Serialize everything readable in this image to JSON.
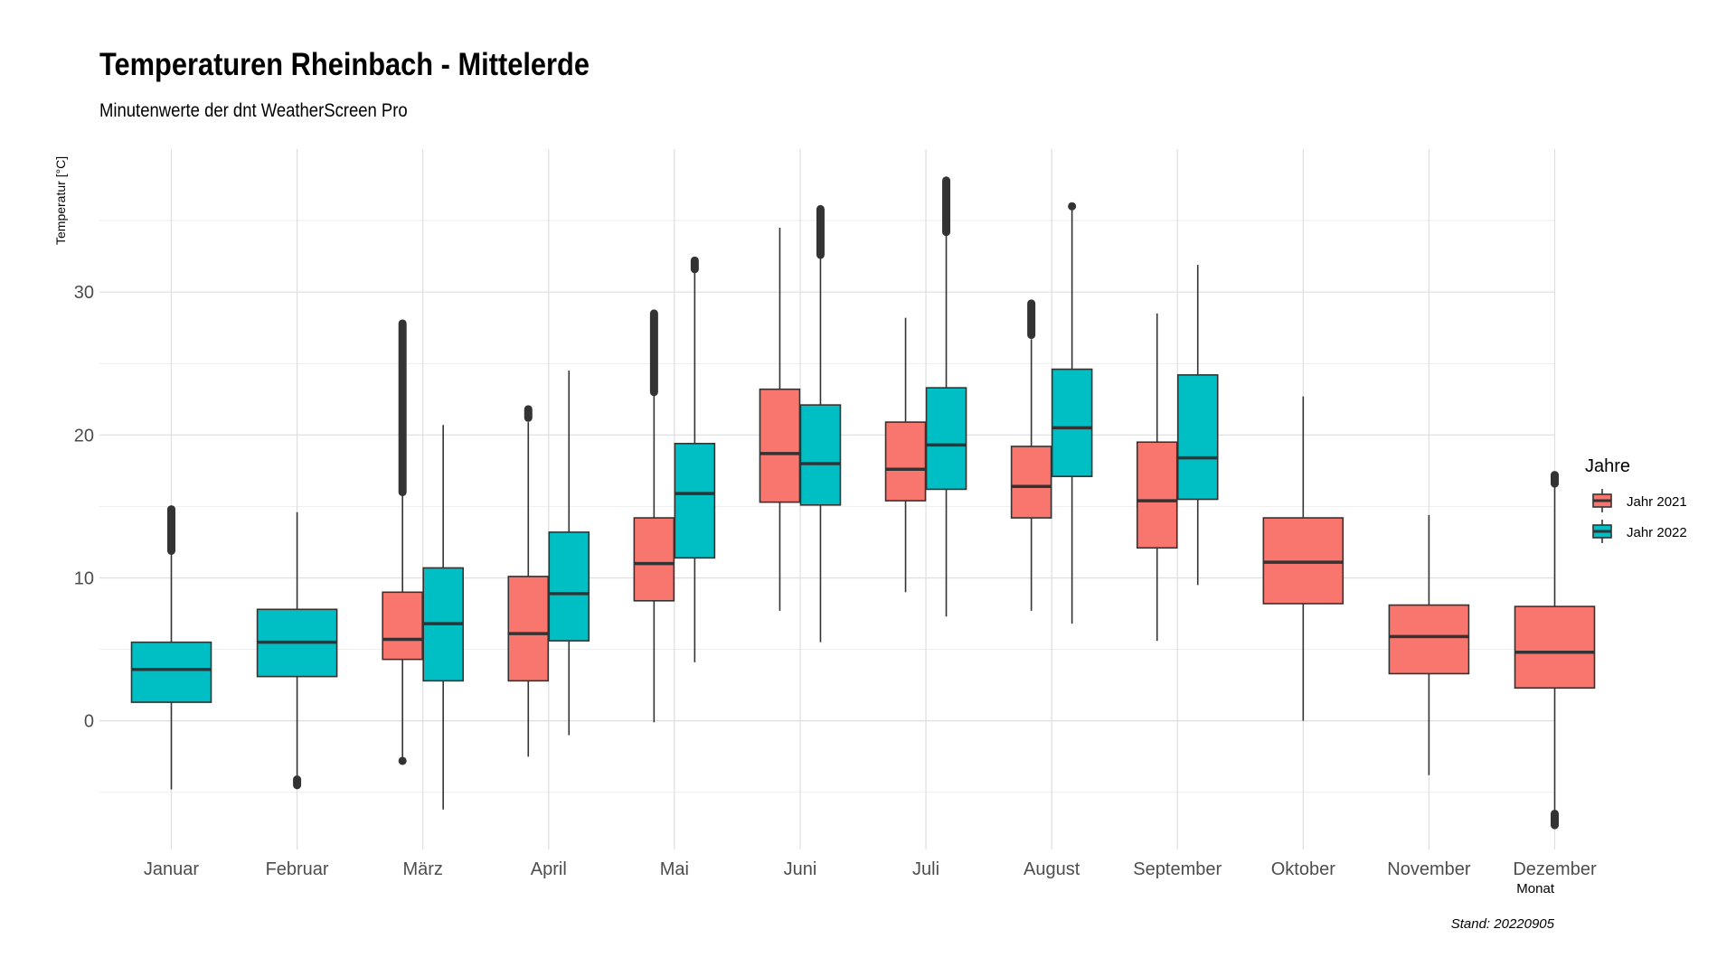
{
  "chart_data": {
    "type": "boxplot",
    "title": "Temperaturen Rheinbach - Mittelerde",
    "subtitle": "Minutenwerte der dnt WeatherScreen Pro",
    "xlabel": "Monat",
    "ylabel": "Temperatur [°C]",
    "caption": "Stand: 20220905",
    "ylim": [
      -9,
      40
    ],
    "yticks": [
      0,
      10,
      20,
      30
    ],
    "grid": true,
    "legend": {
      "title": "Jahre",
      "position": "right"
    },
    "categories": [
      "Januar",
      "Februar",
      "März",
      "April",
      "Mai",
      "Juni",
      "Juli",
      "August",
      "September",
      "Oktober",
      "November",
      "Dezember"
    ],
    "series": [
      {
        "name": "Jahr 2021",
        "color": "#F8766D",
        "boxes": [
          null,
          null,
          {
            "min": -2.8,
            "q1": 4.3,
            "median": 5.7,
            "q3": 9.0,
            "max": 15.8,
            "outliers_low": [
              -2.8
            ],
            "outliers_high": [
              16.0,
              27.8
            ]
          },
          {
            "min": -2.5,
            "q1": 2.8,
            "median": 6.1,
            "q3": 10.1,
            "max": 20.9,
            "outliers_low": [],
            "outliers_high": [
              21.2,
              21.8
            ]
          },
          {
            "min": -0.1,
            "q1": 8.4,
            "median": 11.0,
            "q3": 14.2,
            "max": 23.0,
            "outliers_low": [],
            "outliers_high": [
              23.0,
              28.5
            ]
          },
          {
            "min": 7.7,
            "q1": 15.3,
            "median": 18.7,
            "q3": 23.2,
            "max": 34.5,
            "outliers_low": [],
            "outliers_high": []
          },
          {
            "min": 9.0,
            "q1": 15.4,
            "median": 17.6,
            "q3": 20.9,
            "max": 28.2,
            "outliers_low": [],
            "outliers_high": []
          },
          {
            "min": 7.7,
            "q1": 14.2,
            "median": 16.4,
            "q3": 19.2,
            "max": 26.7,
            "outliers_low": [],
            "outliers_high": [
              27.0,
              29.2
            ]
          },
          {
            "min": 5.6,
            "q1": 12.1,
            "median": 15.4,
            "q3": 19.5,
            "max": 28.5,
            "outliers_low": [],
            "outliers_high": []
          },
          {
            "min": 0.0,
            "q1": 8.2,
            "median": 11.1,
            "q3": 14.2,
            "max": 22.7,
            "outliers_low": [],
            "outliers_high": []
          },
          {
            "min": -3.8,
            "q1": 3.3,
            "median": 5.9,
            "q3": 8.1,
            "max": 14.4,
            "outliers_low": [],
            "outliers_high": []
          },
          {
            "min": -6.5,
            "q1": 2.3,
            "median": 4.8,
            "q3": 8.0,
            "max": 16.4,
            "outliers_low": [
              -6.5,
              -7.3
            ],
            "outliers_high": [
              16.6,
              17.2
            ]
          }
        ]
      },
      {
        "name": "Jahr 2022",
        "color": "#00BFC4",
        "boxes": [
          {
            "min": -4.8,
            "q1": 1.3,
            "median": 3.6,
            "q3": 5.5,
            "max": 11.7,
            "outliers_low": [],
            "outliers_high": [
              11.9,
              14.8
            ]
          },
          {
            "min": -4.1,
            "q1": 3.1,
            "median": 5.5,
            "q3": 7.8,
            "max": 14.6,
            "outliers_low": [
              -4.1,
              -4.5
            ],
            "outliers_high": []
          },
          {
            "min": -6.2,
            "q1": 2.8,
            "median": 6.8,
            "q3": 10.7,
            "max": 20.7,
            "outliers_low": [],
            "outliers_high": []
          },
          {
            "min": -1.0,
            "q1": 5.6,
            "median": 8.9,
            "q3": 13.2,
            "max": 24.5,
            "outliers_low": [],
            "outliers_high": []
          },
          {
            "min": 4.1,
            "q1": 11.4,
            "median": 15.9,
            "q3": 19.4,
            "max": 31.4,
            "outliers_low": [],
            "outliers_high": [
              31.6,
              32.2
            ]
          },
          {
            "min": 5.5,
            "q1": 15.1,
            "median": 18.0,
            "q3": 22.1,
            "max": 32.4,
            "outliers_low": [],
            "outliers_high": [
              32.6,
              35.8
            ]
          },
          {
            "min": 7.3,
            "q1": 16.2,
            "median": 19.3,
            "q3": 23.3,
            "max": 34.0,
            "outliers_low": [],
            "outliers_high": [
              34.2,
              37.8
            ]
          },
          {
            "min": 6.8,
            "q1": 17.1,
            "median": 20.5,
            "q3": 24.6,
            "max": 36.0,
            "outliers_low": [],
            "outliers_high": [
              36.0
            ]
          },
          {
            "min": 9.5,
            "q1": 15.5,
            "median": 18.4,
            "q3": 24.2,
            "max": 31.9,
            "outliers_low": [],
            "outliers_high": []
          },
          null,
          null,
          null
        ]
      }
    ]
  }
}
